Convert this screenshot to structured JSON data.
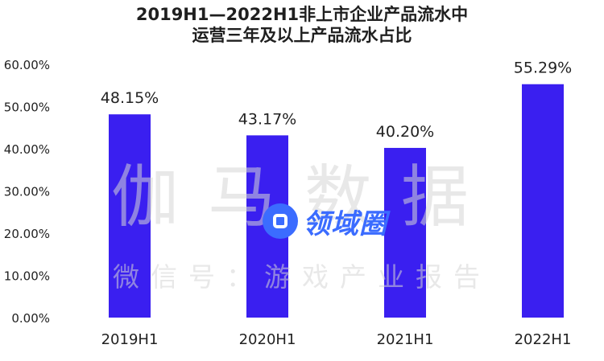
{
  "title_line1": "2019H1—2022H1非上市企业产品流水中",
  "title_line2": "运营三年及以上产品流水占比",
  "watermark": {
    "main": "伽马数据",
    "sub": "微信号：游戏产业报告",
    "logo_text": "领域圈"
  },
  "colors": {
    "bar": "#3a1ff0",
    "text": "#222222"
  },
  "chart_data": {
    "type": "bar",
    "categories": [
      "2019H1",
      "2020H1",
      "2021H1",
      "2022H1"
    ],
    "values": [
      48.15,
      43.17,
      40.2,
      55.29
    ],
    "data_labels": [
      "48.15%",
      "43.17%",
      "40.20%",
      "55.29%"
    ],
    "ylim": [
      0,
      60
    ],
    "y_ticks": [
      0,
      10,
      20,
      30,
      40,
      50,
      60
    ],
    "y_tick_labels": [
      "0.00%",
      "10.00%",
      "20.00%",
      "30.00%",
      "40.00%",
      "50.00%",
      "60.00%"
    ],
    "grid": false,
    "legend": "none"
  }
}
